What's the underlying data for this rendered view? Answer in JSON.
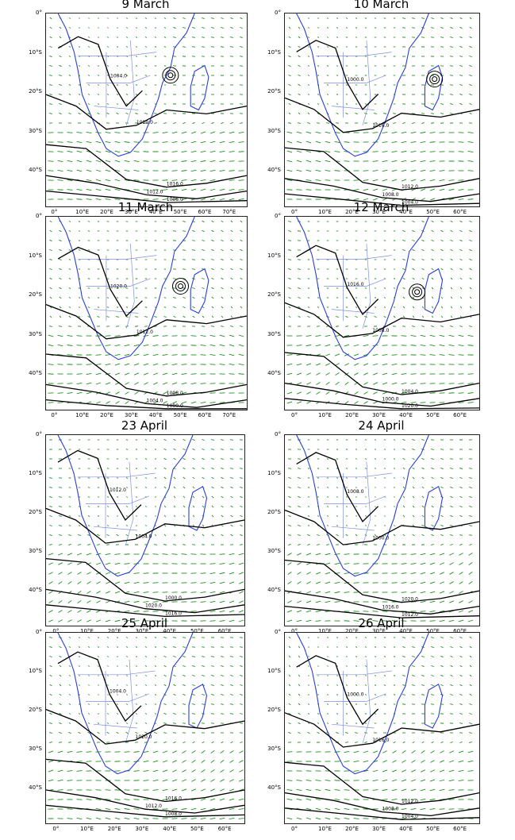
{
  "figure": {
    "panels": [
      {
        "id": "p1",
        "title": "9 March",
        "lon_labels": [
          "0°",
          "10°E",
          "20°E",
          "30°E",
          "40°E",
          "50°E",
          "60°E",
          "70°E"
        ],
        "lat_labels": [
          "0°",
          "10°S",
          "20°S",
          "30°S",
          "40°S"
        ]
      },
      {
        "id": "p2",
        "title": "10 March",
        "lon_labels": [
          "0°",
          "10°E",
          "20°E",
          "30°E",
          "40°E",
          "50°E",
          "60°E"
        ],
        "lat_labels": [
          "0°",
          "10°S",
          "20°S",
          "30°S",
          "40°S"
        ]
      },
      {
        "id": "p3",
        "title": "11 March",
        "lon_labels": [
          "0°",
          "10°E",
          "20°E",
          "30°E",
          "40°E",
          "50°E",
          "60°E",
          "70°E"
        ],
        "lat_labels": [
          "0°",
          "10°S",
          "20°S",
          "30°S",
          "40°S"
        ]
      },
      {
        "id": "p4",
        "title": "12 March",
        "lon_labels": [
          "0°",
          "10°E",
          "20°E",
          "30°E",
          "40°E",
          "50°E",
          "60°E"
        ],
        "lat_labels": [
          "0°",
          "10°S",
          "20°S",
          "30°S",
          "40°S"
        ]
      },
      {
        "id": "p5",
        "title": "23 April",
        "lon_labels": [
          "0°",
          "10°E",
          "20°E",
          "30°E",
          "40°E",
          "50°E",
          "60°E"
        ],
        "lat_labels": [
          "0°",
          "10°S",
          "20°S",
          "30°S",
          "40°S"
        ]
      },
      {
        "id": "p6",
        "title": "24 April",
        "lon_labels": [
          "0°",
          "10°E",
          "20°E",
          "30°E",
          "40°E",
          "50°E",
          "60°E"
        ],
        "lat_labels": [
          "0°",
          "10°S",
          "20°S",
          "30°S",
          "40°S"
        ]
      },
      {
        "id": "p7",
        "title": "25 April",
        "lon_labels": [
          "0°",
          "10°E",
          "20°E",
          "30°E",
          "40°E",
          "50°E",
          "60°E"
        ],
        "lat_labels": [
          "0°",
          "10°S",
          "20°S",
          "30°S",
          "40°S"
        ]
      },
      {
        "id": "p8",
        "title": "26 April",
        "lon_labels": [
          "0°",
          "10°E",
          "20°E",
          "30°E",
          "40°E",
          "50°E",
          "60°E"
        ],
        "lat_labels": [
          "0°",
          "10°S",
          "20°S",
          "30°S",
          "40°S"
        ]
      }
    ],
    "contour_labels": [
      "1020.0",
      "1016.0",
      "1012.0",
      "1008.0",
      "1004.0",
      "1000.0"
    ],
    "colors": {
      "coastline": "#2a3fd6",
      "borders": "#7f8ee0",
      "wind_vectors": "#1e8f1e",
      "isobars": "#000000"
    }
  }
}
